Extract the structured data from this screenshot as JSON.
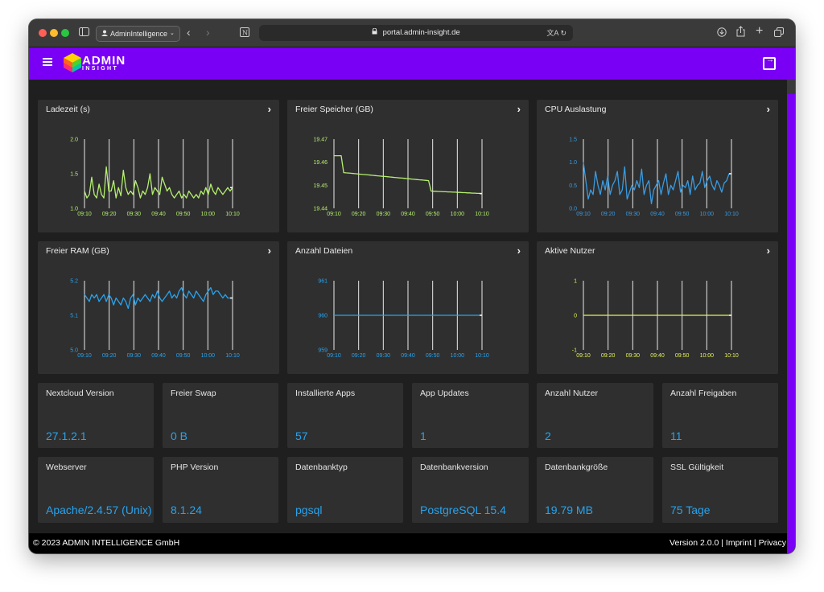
{
  "browser": {
    "profile_label": "AdminIntelligence",
    "url": "portal.admin-insight.de",
    "translate_label": "文A"
  },
  "brand": {
    "name_top": "ADMIN",
    "name_bottom": "INSIGHT"
  },
  "charts": [
    {
      "title": "Ladezeit (s)",
      "color": "#b5f06e",
      "ytick_labels": [
        "2.0",
        "1.5",
        "1.0"
      ],
      "ylim": [
        1.0,
        2.0
      ],
      "xtick_labels": [
        "09:10",
        "09:20",
        "09:30",
        "09:40",
        "09:50",
        "10:00",
        "10:10"
      ],
      "values": [
        1.25,
        1.15,
        1.2,
        1.45,
        1.2,
        1.15,
        1.35,
        1.2,
        1.15,
        1.6,
        1.25,
        1.25,
        1.4,
        1.15,
        1.3,
        1.18,
        1.55,
        1.3,
        1.2,
        1.25,
        1.2,
        1.4,
        1.3,
        1.15,
        1.25,
        1.2,
        1.3,
        1.5,
        1.2,
        1.3,
        1.25,
        1.2,
        1.45,
        1.35,
        1.25,
        1.3,
        1.2,
        1.15,
        1.2,
        1.25,
        1.15,
        1.2,
        1.15,
        1.25,
        1.2,
        1.15,
        1.2,
        1.15,
        1.25,
        1.2,
        1.3,
        1.2,
        1.35,
        1.25,
        1.2,
        1.3,
        1.25,
        1.2,
        1.25,
        1.3,
        1.25,
        1.3
      ]
    },
    {
      "title": "Freier Speicher (GB)",
      "color": "#b5f06e",
      "ytick_labels": [
        "19.47",
        "19.46",
        "19.45",
        "19.44"
      ],
      "ylim": [
        19.44,
        19.47
      ],
      "xtick_labels": [
        "09:10",
        "09:20",
        "09:30",
        "09:40",
        "09:50",
        "10:00",
        "10:10"
      ],
      "values": [
        19.4628,
        19.4628,
        19.4628,
        19.4628,
        19.4555,
        19.4554,
        19.4553,
        19.4552,
        19.4551,
        19.455,
        19.4549,
        19.4548,
        19.4547,
        19.4546,
        19.4545,
        19.4544,
        19.4543,
        19.4542,
        19.4541,
        19.454,
        19.4539,
        19.4538,
        19.4537,
        19.4536,
        19.4535,
        19.4534,
        19.4533,
        19.4532,
        19.4531,
        19.453,
        19.4529,
        19.4528,
        19.4527,
        19.4526,
        19.4525,
        19.4524,
        19.4523,
        19.4522,
        19.4521,
        19.452,
        19.4475,
        19.4474,
        19.4474,
        19.4473,
        19.4473,
        19.4472,
        19.4472,
        19.4471,
        19.4471,
        19.447,
        19.447,
        19.4469,
        19.4469,
        19.4468,
        19.4468,
        19.4467,
        19.4467,
        19.4466,
        19.4466,
        19.4465,
        19.4465,
        19.4464
      ]
    },
    {
      "title": "CPU Auslastung",
      "color": "#3a9be0",
      "ytick_labels": [
        "1.5",
        "1.0",
        "0.5",
        "0.0"
      ],
      "ylim": [
        0.0,
        1.5
      ],
      "xtick_labels": [
        "09:10",
        "09:20",
        "09:30",
        "09:40",
        "09:50",
        "10:00",
        "10:10"
      ],
      "values": [
        1.0,
        0.6,
        0.2,
        0.4,
        0.3,
        0.8,
        0.5,
        0.3,
        0.6,
        0.4,
        0.7,
        0.3,
        0.5,
        0.6,
        0.8,
        0.3,
        0.4,
        0.9,
        0.2,
        0.35,
        0.5,
        0.4,
        0.6,
        0.45,
        0.85,
        0.3,
        0.5,
        0.6,
        0.1,
        0.4,
        0.5,
        0.6,
        0.3,
        0.55,
        0.75,
        0.3,
        0.5,
        0.4,
        0.6,
        0.8,
        0.35,
        0.5,
        0.45,
        0.6,
        0.3,
        0.7,
        0.4,
        0.5,
        0.55,
        0.8,
        0.45,
        0.6,
        0.7,
        0.5,
        0.4,
        0.6,
        0.5,
        0.35,
        0.55,
        0.6,
        0.75,
        0.75
      ]
    },
    {
      "title": "Freier RAM (GB)",
      "color": "#27a3ee",
      "ytick_labels": [
        "5.2",
        "5.1",
        "5.0"
      ],
      "ylim": [
        5.0,
        5.2
      ],
      "xtick_labels": [
        "09:10",
        "09:20",
        "09:30",
        "09:40",
        "09:50",
        "10:00",
        "10:10"
      ],
      "values": [
        5.16,
        5.15,
        5.14,
        5.16,
        5.15,
        5.16,
        5.14,
        5.15,
        5.16,
        5.14,
        5.16,
        5.15,
        5.13,
        5.15,
        5.14,
        5.13,
        5.15,
        5.14,
        5.12,
        5.15,
        5.16,
        5.13,
        5.15,
        5.14,
        5.15,
        5.16,
        5.15,
        5.14,
        5.16,
        5.15,
        5.17,
        5.15,
        5.14,
        5.15,
        5.16,
        5.17,
        5.15,
        5.16,
        5.15,
        5.17,
        5.18,
        5.16,
        5.15,
        5.17,
        5.16,
        5.15,
        5.17,
        5.16,
        5.15,
        5.14,
        5.16,
        5.17,
        5.18,
        5.16,
        5.17,
        5.17,
        5.16,
        5.15,
        5.16,
        5.15,
        5.15,
        5.15
      ]
    },
    {
      "title": "Anzahl Dateien",
      "color": "#27a3ee",
      "ytick_labels": [
        "961",
        "960",
        "959"
      ],
      "ylim": [
        959,
        961
      ],
      "xtick_labels": [
        "09:10",
        "09:20",
        "09:30",
        "09:40",
        "09:50",
        "10:00",
        "10:10"
      ],
      "values": [
        960,
        960,
        960,
        960,
        960,
        960,
        960,
        960,
        960,
        960,
        960,
        960,
        960,
        960,
        960,
        960,
        960,
        960,
        960,
        960,
        960,
        960,
        960,
        960,
        960,
        960,
        960,
        960,
        960,
        960,
        960,
        960,
        960,
        960,
        960,
        960,
        960,
        960,
        960,
        960,
        960,
        960,
        960,
        960,
        960,
        960,
        960,
        960,
        960,
        960,
        960,
        960,
        960,
        960,
        960,
        960,
        960,
        960,
        960,
        960,
        960,
        960
      ]
    },
    {
      "title": "Aktive Nutzer",
      "color": "#e5f05a",
      "ytick_labels": [
        "1",
        "0",
        "-1"
      ],
      "ylim": [
        -1,
        1
      ],
      "xtick_labels": [
        "09:10",
        "09:20",
        "09:30",
        "09:40",
        "09:50",
        "10:00",
        "10:10"
      ],
      "values": [
        0,
        0,
        0,
        0,
        0,
        0,
        0,
        0,
        0,
        0,
        0,
        0,
        0,
        0,
        0,
        0,
        0,
        0,
        0,
        0,
        0,
        0,
        0,
        0,
        0,
        0,
        0,
        0,
        0,
        0,
        0,
        0,
        0,
        0,
        0,
        0,
        0,
        0,
        0,
        0,
        0,
        0,
        0,
        0,
        0,
        0,
        0,
        0,
        0,
        0,
        0,
        0,
        0,
        0,
        0,
        0,
        0,
        0,
        0,
        0,
        0,
        0
      ]
    }
  ],
  "stats": [
    {
      "title": "Nextcloud Version",
      "value": "27.1.2.1"
    },
    {
      "title": "Freier Swap",
      "value": "0 B"
    },
    {
      "title": "Installierte Apps",
      "value": "57"
    },
    {
      "title": "App Updates",
      "value": "1"
    },
    {
      "title": "Anzahl Nutzer",
      "value": "2"
    },
    {
      "title": "Anzahl Freigaben",
      "value": "11"
    },
    {
      "title": "Webserver",
      "value": "Apache/2.4.57 (Unix)"
    },
    {
      "title": "PHP Version",
      "value": "8.1.24"
    },
    {
      "title": "Datenbanktyp",
      "value": "pgsql"
    },
    {
      "title": "Datenbankversion",
      "value": "PostgreSQL 15.4"
    },
    {
      "title": "Datenbankgröße",
      "value": "19.79 MB"
    },
    {
      "title": "SSL Gültigkeit",
      "value": "75 Tage"
    }
  ],
  "footer": {
    "copyright": "© 2023 ADMIN INTELLIGENCE GmbH",
    "version": "Version 2.0.0",
    "sep1": " | ",
    "imprint": "Imprint",
    "sep2": " | ",
    "privacy": "Privacy"
  }
}
